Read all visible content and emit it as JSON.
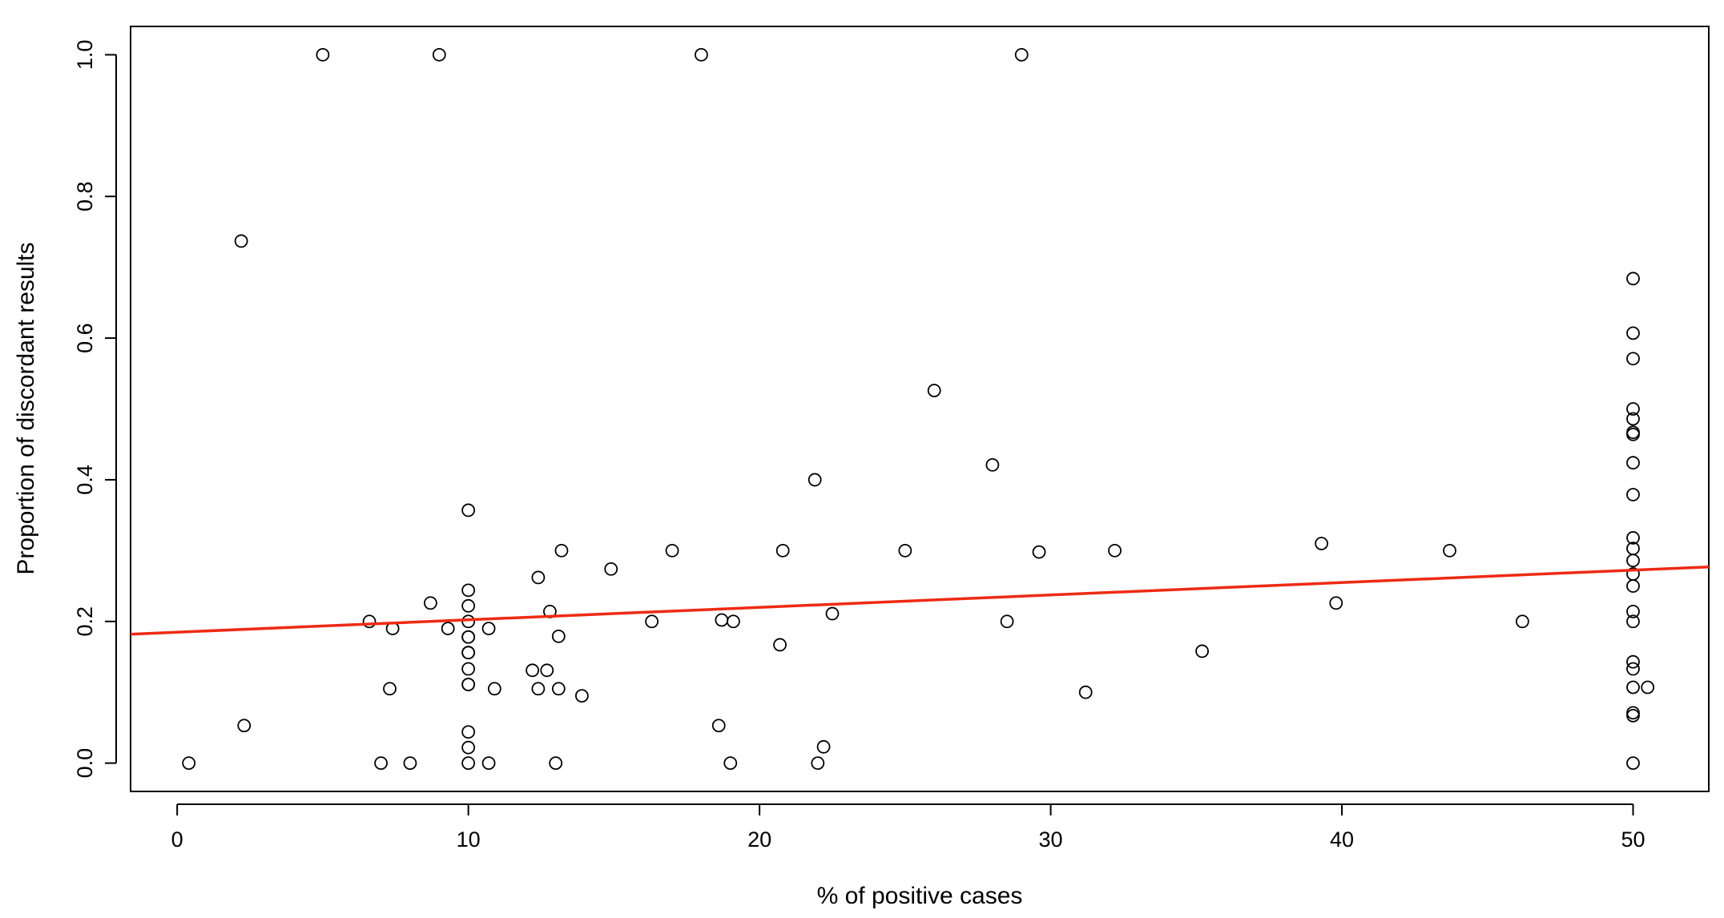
{
  "chart_data": {
    "type": "scatter",
    "title": "",
    "xlabel": "% of positive cases",
    "ylabel": "Proportion of discordant results",
    "xlim": [
      -1.6,
      52.6
    ],
    "ylim": [
      -0.04,
      1.04
    ],
    "xticks": [
      0,
      10,
      20,
      30,
      40,
      50
    ],
    "xtick_labels": [
      "0",
      "10",
      "20",
      "30",
      "40",
      "50"
    ],
    "yticks": [
      0.0,
      0.2,
      0.4,
      0.6,
      0.8,
      1.0
    ],
    "ytick_labels": [
      "0.0",
      "0.2",
      "0.4",
      "0.6",
      "0.8",
      "1.0"
    ],
    "grid": false,
    "legend": "none",
    "marker": "open-circle",
    "point_color": "#000000",
    "fit_line": {
      "color": "#ee2a14",
      "from": [
        -1.6,
        0.182
      ],
      "to": [
        52.6,
        0.277
      ]
    },
    "points": [
      [
        0.4,
        0.0
      ],
      [
        2.2,
        0.737
      ],
      [
        2.3,
        0.053
      ],
      [
        5.0,
        1.0
      ],
      [
        9.0,
        1.0
      ],
      [
        18.0,
        1.0
      ],
      [
        29.0,
        1.0
      ],
      [
        6.6,
        0.2
      ],
      [
        7.0,
        0.0
      ],
      [
        7.3,
        0.105
      ],
      [
        7.4,
        0.19
      ],
      [
        8.0,
        0.0
      ],
      [
        8.7,
        0.226
      ],
      [
        9.3,
        0.19
      ],
      [
        10.0,
        0.357
      ],
      [
        10.0,
        0.244
      ],
      [
        10.0,
        0.222
      ],
      [
        10.0,
        0.2
      ],
      [
        10.0,
        0.178
      ],
      [
        10.0,
        0.178
      ],
      [
        10.0,
        0.156
      ],
      [
        10.0,
        0.156
      ],
      [
        10.0,
        0.133
      ],
      [
        10.0,
        0.111
      ],
      [
        10.0,
        0.111
      ],
      [
        10.0,
        0.044
      ],
      [
        10.0,
        0.022
      ],
      [
        10.0,
        0.0
      ],
      [
        10.7,
        0.19
      ],
      [
        10.7,
        0.0
      ],
      [
        10.9,
        0.105
      ],
      [
        12.2,
        0.131
      ],
      [
        12.4,
        0.262
      ],
      [
        12.4,
        0.105
      ],
      [
        12.7,
        0.131
      ],
      [
        12.8,
        0.214
      ],
      [
        13.0,
        0.0
      ],
      [
        13.2,
        0.3
      ],
      [
        13.1,
        0.179
      ],
      [
        13.1,
        0.105
      ],
      [
        13.9,
        0.095
      ],
      [
        14.9,
        0.274
      ],
      [
        16.3,
        0.2
      ],
      [
        17.0,
        0.3
      ],
      [
        18.6,
        0.053
      ],
      [
        18.7,
        0.202
      ],
      [
        19.0,
        0.0
      ],
      [
        19.1,
        0.2
      ],
      [
        20.7,
        0.167
      ],
      [
        20.8,
        0.3
      ],
      [
        21.9,
        0.4
      ],
      [
        22.0,
        0.0
      ],
      [
        22.2,
        0.023
      ],
      [
        22.5,
        0.211
      ],
      [
        25.0,
        0.3
      ],
      [
        26.0,
        0.526
      ],
      [
        28.0,
        0.421
      ],
      [
        28.5,
        0.2
      ],
      [
        29.6,
        0.298
      ],
      [
        31.2,
        0.1
      ],
      [
        32.2,
        0.3
      ],
      [
        35.2,
        0.158
      ],
      [
        39.3,
        0.31
      ],
      [
        39.8,
        0.226
      ],
      [
        43.7,
        0.3
      ],
      [
        46.2,
        0.2
      ],
      [
        50.0,
        0.684
      ],
      [
        50.0,
        0.607
      ],
      [
        50.0,
        0.571
      ],
      [
        50.0,
        0.5
      ],
      [
        50.0,
        0.486
      ],
      [
        50.0,
        0.467
      ],
      [
        50.0,
        0.464
      ],
      [
        50.0,
        0.424
      ],
      [
        50.0,
        0.379
      ],
      [
        50.0,
        0.318
      ],
      [
        50.0,
        0.303
      ],
      [
        50.0,
        0.286
      ],
      [
        50.0,
        0.267
      ],
      [
        50.0,
        0.25
      ],
      [
        50.0,
        0.214
      ],
      [
        50.0,
        0.2
      ],
      [
        50.0,
        0.143
      ],
      [
        50.0,
        0.133
      ],
      [
        50.0,
        0.107
      ],
      [
        50.0,
        0.071
      ],
      [
        50.0,
        0.067
      ],
      [
        50.0,
        0.0
      ],
      [
        50.5,
        0.107
      ]
    ]
  }
}
